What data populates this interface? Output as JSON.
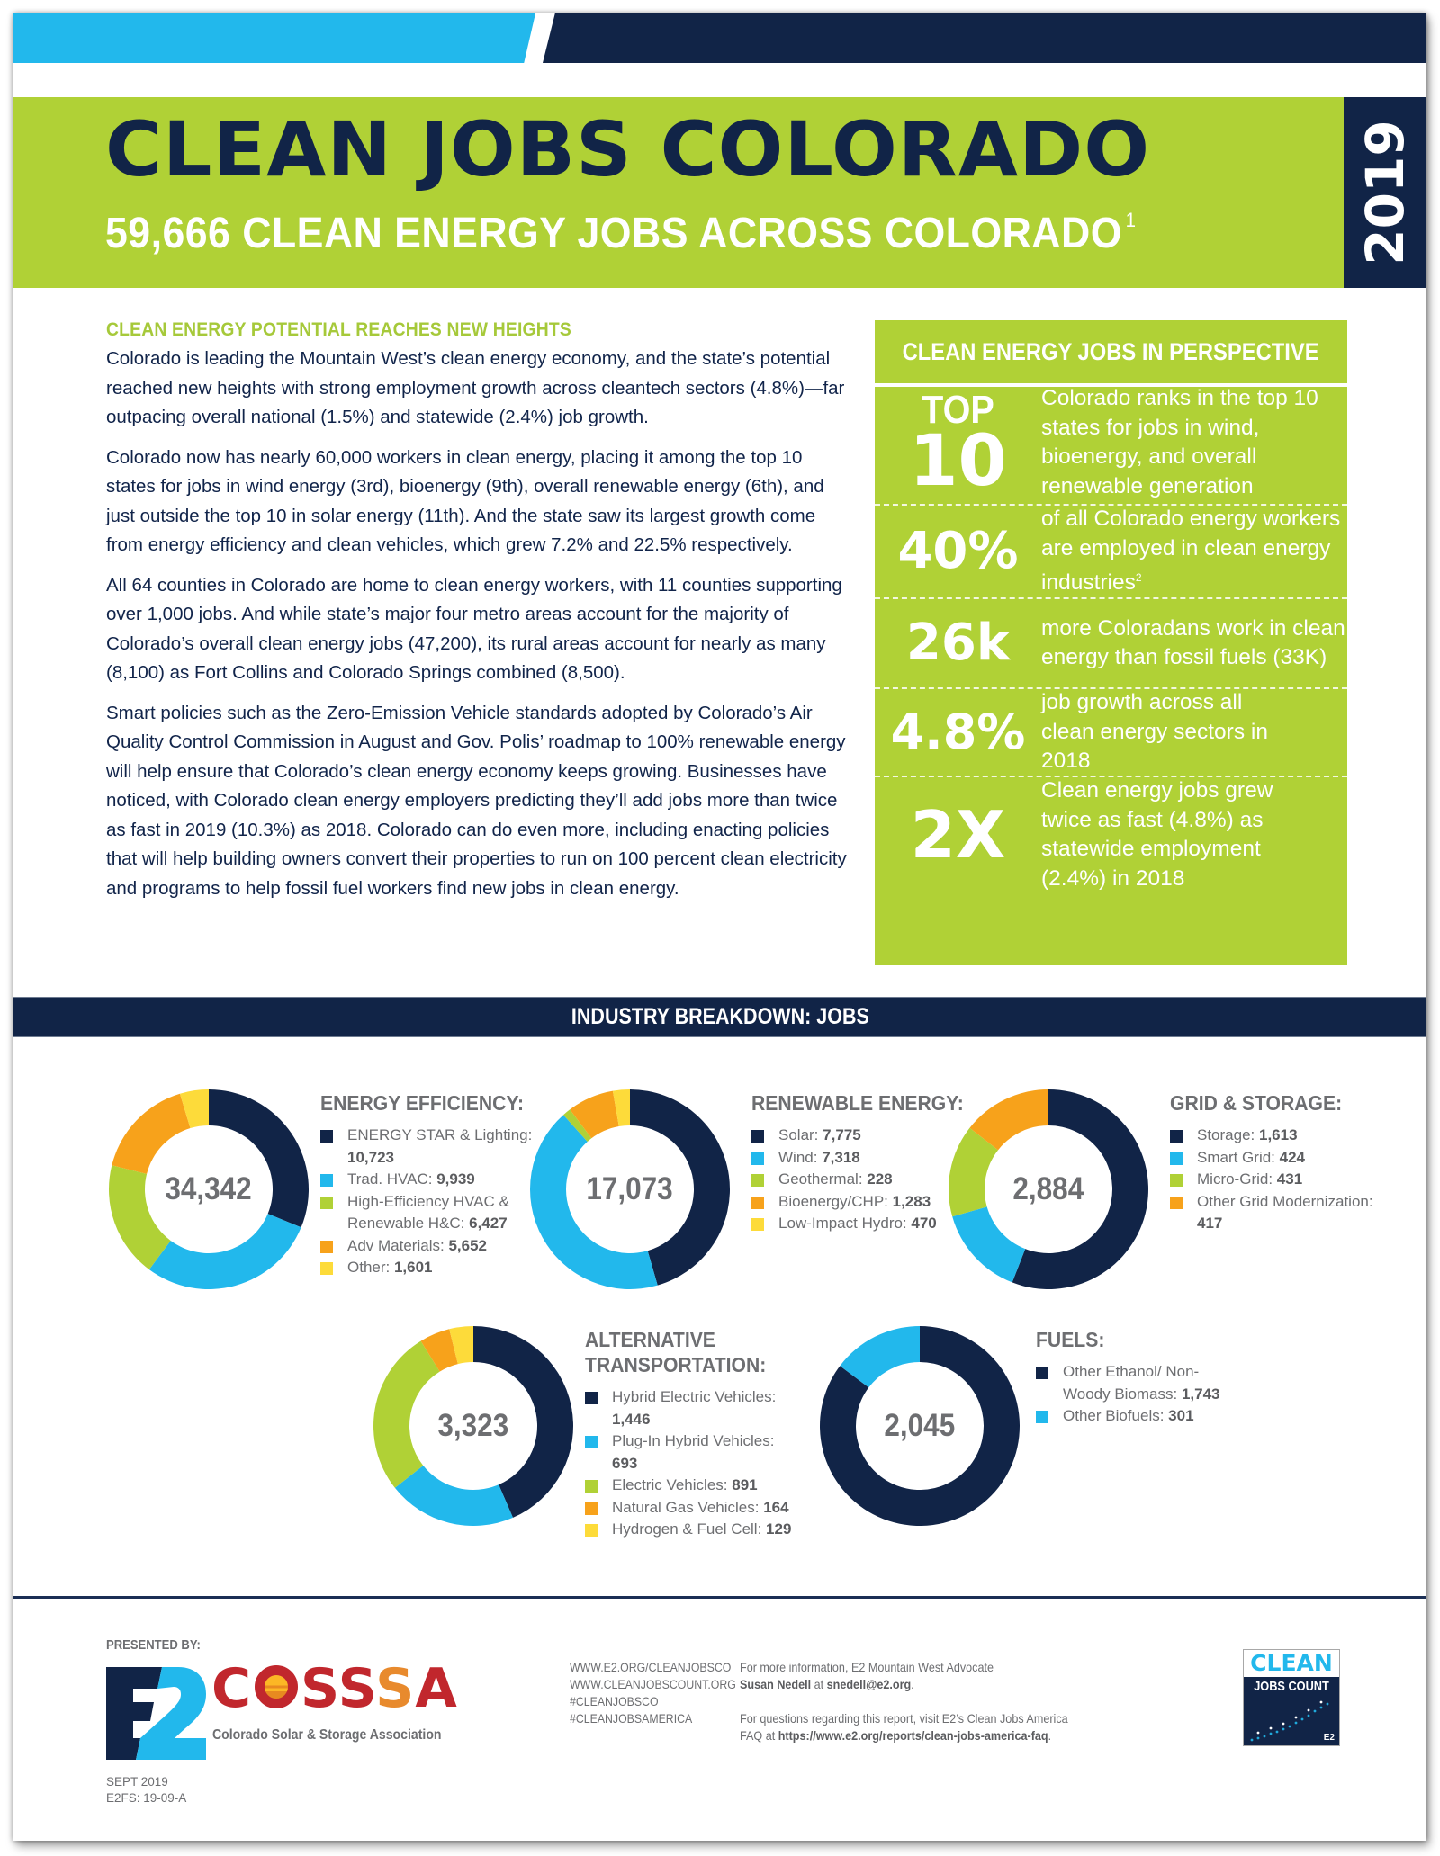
{
  "colors": {
    "navy": "#112447",
    "cyan": "#22b8ec",
    "green": "#b0d136",
    "orange": "#f7a21b",
    "yellow": "#fddb3a",
    "gray_text": "#6d6e71"
  },
  "header": {
    "title": "CLEAN JOBS COLORADO",
    "subtitle": "59,666 CLEAN ENERGY JOBS ACROSS COLORADO",
    "subtitle_footnote": "1",
    "year": "2019"
  },
  "intro": {
    "heading": "CLEAN ENERGY POTENTIAL REACHES NEW HEIGHTS",
    "paragraphs": [
      "Colorado is leading the Mountain West’s clean energy economy, and the state’s potential reached new heights with strong employment growth across cleantech sectors (4.8%)—far outpacing overall national (1.5%) and statewide (2.4%) job growth.",
      "Colorado now has nearly 60,000 workers in clean energy, placing it among the top 10 states for jobs in wind energy (3rd), bioenergy (9th), overall renewable energy (6th), and just outside the top 10 in solar energy (11th). And the state saw its largest growth come from energy efficiency and clean vehicles, which grew 7.2% and 22.5% respectively.",
      "All 64 counties in Colorado are home to clean energy workers, with 11 counties supporting over 1,000 jobs. And while state’s major four metro areas account for the majority of Colorado’s overall clean energy jobs (47,200), its rural areas account for nearly as many (8,100) as Fort Collins and Colorado Springs combined (8,500).",
      "Smart policies such as the Zero-Emission Vehicle standards adopted by Colorado’s Air Quality Control Commission in August and Gov. Polis’ roadmap to 100% renewable energy will help ensure that Colorado’s clean energy economy keeps growing. Businesses have noticed, with Colorado clean energy employers predicting they’ll add jobs more than twice as fast in 2019 (10.3%) as 2018. Colorado can do even more, including enacting policies that will help building owners convert their properties to run on 100 percent clean electricity and programs to help fossil fuel workers find new jobs in clean energy."
    ]
  },
  "perspective": {
    "heading": "CLEAN ENERGY JOBS IN PERSPECTIVE",
    "stats": [
      {
        "big_line1": "TOP",
        "big_line2": "10",
        "text": "Colorado ranks in the top 10 states for jobs in wind, bioenergy, and overall renewable generation"
      },
      {
        "big": "40%",
        "text": "of all Colorado energy workers are employed in clean energy industries",
        "footnote": "2"
      },
      {
        "big": "26k",
        "text": "more Coloradans work in clean energy than fossil fuels (33K)"
      },
      {
        "big": "4.8%",
        "text": "job growth across all clean energy sectors in 2018"
      },
      {
        "big": "2X",
        "text": "Clean energy jobs grew twice as fast (4.8%) as statewide employment (2.4%) in 2018"
      }
    ]
  },
  "breakdown": {
    "heading": "INDUSTRY BREAKDOWN: JOBS"
  },
  "chart_data": [
    {
      "type": "pie",
      "title": "ENERGY EFFICIENCY:",
      "total": "34,342",
      "categories": [
        "ENERGY STAR & Lighting",
        "Trad. HVAC",
        "High-Efficiency HVAC & Renewable H&C",
        "Adv Materials",
        "Other"
      ],
      "values": [
        10723,
        9939,
        6427,
        5652,
        1601
      ],
      "labels": [
        "ENERGY STAR & Lighting: ",
        "Trad. HVAC: ",
        "High-Efficiency HVAC & Renewable H&C: ",
        "Adv Materials: ",
        "Other: "
      ],
      "display_values": [
        "10,723",
        "9,939",
        "6,427",
        "5,652",
        "1,601"
      ],
      "colors": [
        "#112447",
        "#22b8ec",
        "#b0d136",
        "#f7a21b",
        "#fddb3a"
      ]
    },
    {
      "type": "pie",
      "title": "RENEWABLE ENERGY:",
      "total": "17,073",
      "categories": [
        "Solar",
        "Wind",
        "Geothermal",
        "Bioenergy/CHP",
        "Low-Impact Hydro"
      ],
      "values": [
        7775,
        7318,
        228,
        1283,
        470
      ],
      "labels": [
        "Solar: ",
        "Wind: ",
        "Geothermal: ",
        "Bioenergy/CHP: ",
        "Low-Impact Hydro: "
      ],
      "display_values": [
        "7,775",
        "7,318",
        "228",
        "1,283",
        "470"
      ],
      "colors": [
        "#112447",
        "#22b8ec",
        "#b0d136",
        "#f7a21b",
        "#fddb3a"
      ]
    },
    {
      "type": "pie",
      "title": "GRID & STORAGE:",
      "total": "2,884",
      "categories": [
        "Storage",
        "Smart Grid",
        "Micro-Grid",
        "Other Grid Modernization"
      ],
      "values": [
        1613,
        424,
        431,
        417
      ],
      "labels": [
        "Storage: ",
        "Smart Grid: ",
        "Micro-Grid: ",
        "Other Grid Modernization: "
      ],
      "display_values": [
        "1,613",
        "424",
        "431",
        "417"
      ],
      "colors": [
        "#112447",
        "#22b8ec",
        "#b0d136",
        "#f7a21b"
      ]
    },
    {
      "type": "pie",
      "title": "ALTERNATIVE TRANSPORTATION:",
      "total": "3,323",
      "categories": [
        "Hybrid Electric Vehicles",
        "Plug-In Hybrid Vehicles",
        "Electric Vehicles",
        "Natural Gas Vehicles",
        "Hydrogen & Fuel Cell"
      ],
      "values": [
        1446,
        693,
        891,
        164,
        129
      ],
      "labels": [
        "Hybrid Electric Vehicles: ",
        "Plug-In Hybrid Vehicles: ",
        "Electric Vehicles: ",
        "Natural Gas Vehicles: ",
        "Hydrogen & Fuel Cell: "
      ],
      "display_values": [
        "1,446",
        "693",
        "891",
        "164",
        "129"
      ],
      "colors": [
        "#112447",
        "#22b8ec",
        "#b0d136",
        "#f7a21b",
        "#fddb3a"
      ]
    },
    {
      "type": "pie",
      "title": "FUELS:",
      "total": "2,045",
      "categories": [
        "Other Ethanol/Non-Woody Biomass",
        "Other Biofuels"
      ],
      "values": [
        1743,
        301
      ],
      "labels": [
        "Other Ethanol/ Non-Woody Biomass: ",
        "Other Biofuels: "
      ],
      "display_values": [
        "1,743",
        "301"
      ],
      "colors": [
        "#112447",
        "#22b8ec"
      ]
    }
  ],
  "footer": {
    "presented_by": "PRESENTED BY:",
    "e2_logo_text": "E2",
    "cossa_name": "COSSA",
    "cossa_tagline": "Colorado Solar & Storage Association",
    "links": [
      "WWW.E2.ORG/CLEANJOBSCO",
      "WWW.CLEANJOBSCOUNT.ORG",
      "#CLEANJOBSCO",
      "#CLEANJOBSAMERICA"
    ],
    "contact_line1": "For more information, E2 Mountain West Advocate",
    "contact_name": "Susan Nedell",
    "contact_at": " at ",
    "contact_email": "snedell@e2.org",
    "contact_end": ".",
    "faq_line1": "For questions regarding this report, visit E2’s Clean Jobs America",
    "faq_prefix": "FAQ at ",
    "faq_url": "https://www.e2.org/reports/clean-jobs-america-faq",
    "faq_end": ".",
    "badge_top": "CLEAN",
    "badge_bottom": "JOBS COUNT",
    "badge_mark": "E2",
    "date": "SEPT 2019",
    "doc_id": "E2FS: 19-09-A"
  }
}
